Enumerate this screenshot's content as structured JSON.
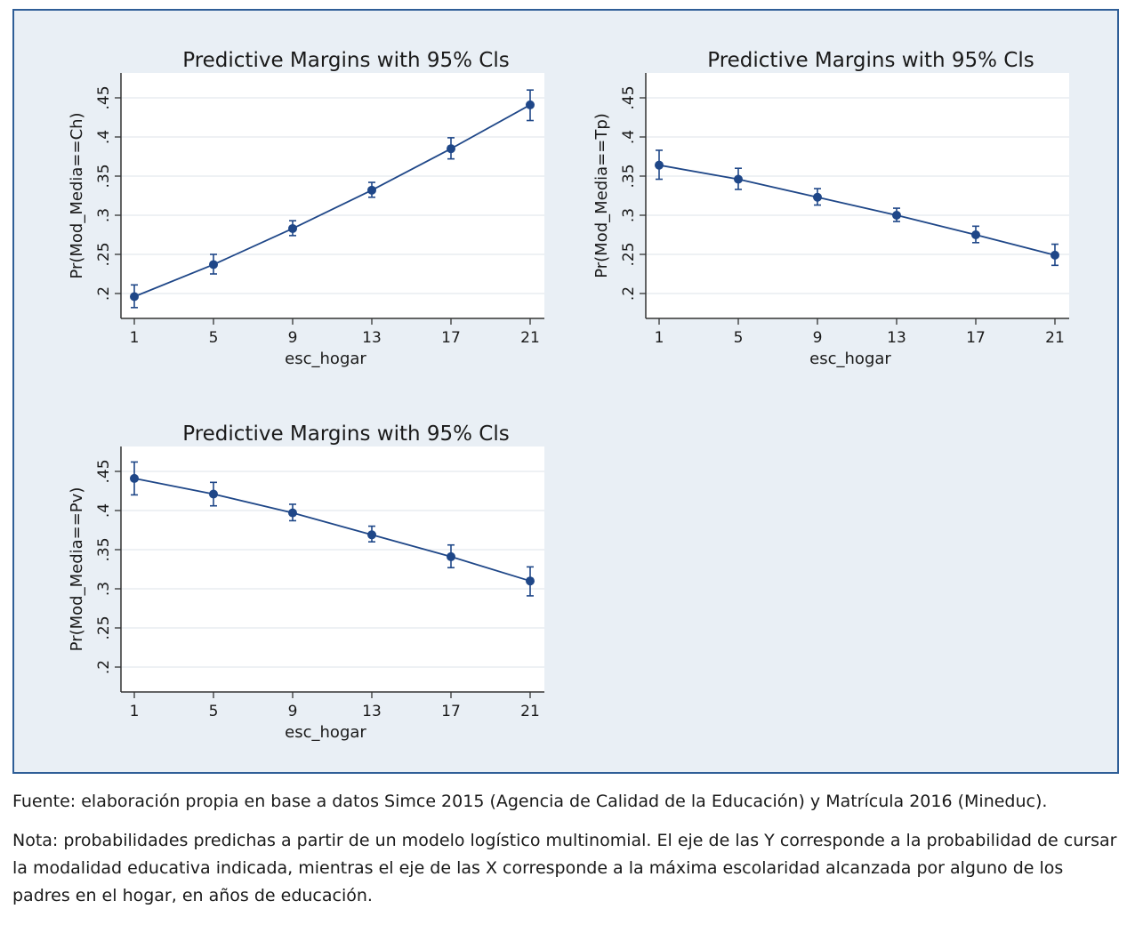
{
  "colors": {
    "series": "#1f4788",
    "frame": "#2f5e97",
    "background": "#e9eff5",
    "grid": "#dde3ea"
  },
  "chart_data": [
    {
      "type": "line",
      "title": "Predictive Margins with 95% Cls",
      "xlabel": "esc_hogar",
      "ylabel": "Pr(Mod_Media==Ch)",
      "x": [
        1,
        5,
        9,
        13,
        17,
        21
      ],
      "x_tick_labels": [
        "1",
        "5",
        "9",
        "13",
        "17",
        "21"
      ],
      "y_tick_values": [
        0.2,
        0.25,
        0.3,
        0.35,
        0.4,
        0.45
      ],
      "y_tick_labels": [
        ".2",
        ".25",
        ".3",
        ".35",
        ".4",
        ".45"
      ],
      "ylim": [
        0.2,
        0.45
      ],
      "series": [
        {
          "values": [
            0.196,
            0.237,
            0.283,
            0.332,
            0.385,
            0.441
          ],
          "ci_low": [
            0.182,
            0.225,
            0.274,
            0.323,
            0.372,
            0.421
          ],
          "ci_high": [
            0.211,
            0.25,
            0.293,
            0.342,
            0.399,
            0.46
          ]
        }
      ],
      "grid": true
    },
    {
      "type": "line",
      "title": "Predictive Margins with 95% Cls",
      "xlabel": "esc_hogar",
      "ylabel": "Pr(Mod_Media==Tp)",
      "x": [
        1,
        5,
        9,
        13,
        17,
        21
      ],
      "x_tick_labels": [
        "1",
        "5",
        "9",
        "13",
        "17",
        "21"
      ],
      "y_tick_values": [
        0.2,
        0.25,
        0.3,
        0.35,
        0.4,
        0.45
      ],
      "y_tick_labels": [
        ".2",
        ".25",
        ".3",
        ".35",
        ".4",
        ".45"
      ],
      "ylim": [
        0.2,
        0.45
      ],
      "series": [
        {
          "values": [
            0.364,
            0.346,
            0.323,
            0.3,
            0.275,
            0.249
          ],
          "ci_low": [
            0.346,
            0.333,
            0.313,
            0.292,
            0.265,
            0.236
          ],
          "ci_high": [
            0.383,
            0.36,
            0.334,
            0.309,
            0.286,
            0.263
          ]
        }
      ],
      "grid": true
    },
    {
      "type": "line",
      "title": "Predictive Margins with 95% Cls",
      "xlabel": "esc_hogar",
      "ylabel": "Pr(Mod_Media==Pv)",
      "x": [
        1,
        5,
        9,
        13,
        17,
        21
      ],
      "x_tick_labels": [
        "1",
        "5",
        "9",
        "13",
        "17",
        "21"
      ],
      "y_tick_values": [
        0.2,
        0.25,
        0.3,
        0.35,
        0.4,
        0.45
      ],
      "y_tick_labels": [
        ".2",
        ".25",
        ".3",
        ".35",
        ".4",
        ".45"
      ],
      "ylim": [
        0.2,
        0.45
      ],
      "series": [
        {
          "values": [
            0.441,
            0.421,
            0.397,
            0.369,
            0.341,
            0.31
          ],
          "ci_low": [
            0.42,
            0.406,
            0.387,
            0.36,
            0.327,
            0.291
          ],
          "ci_high": [
            0.462,
            0.436,
            0.408,
            0.38,
            0.356,
            0.328
          ]
        }
      ],
      "grid": true
    }
  ],
  "caption": {
    "source": "Fuente: elaboración propia en base a datos Simce 2015 (Agencia de Calidad de la Educación) y Matrícula 2016 (Mineduc).",
    "note": "Nota: probabilidades predichas a partir de un modelo logístico multinomial. El eje de las Y corresponde a la probabilidad de cursar la modalidad educativa indicada, mientras el eje de las X corresponde a la máxima escolaridad alcanzada por alguno de los padres en el hogar, en años de educación."
  }
}
